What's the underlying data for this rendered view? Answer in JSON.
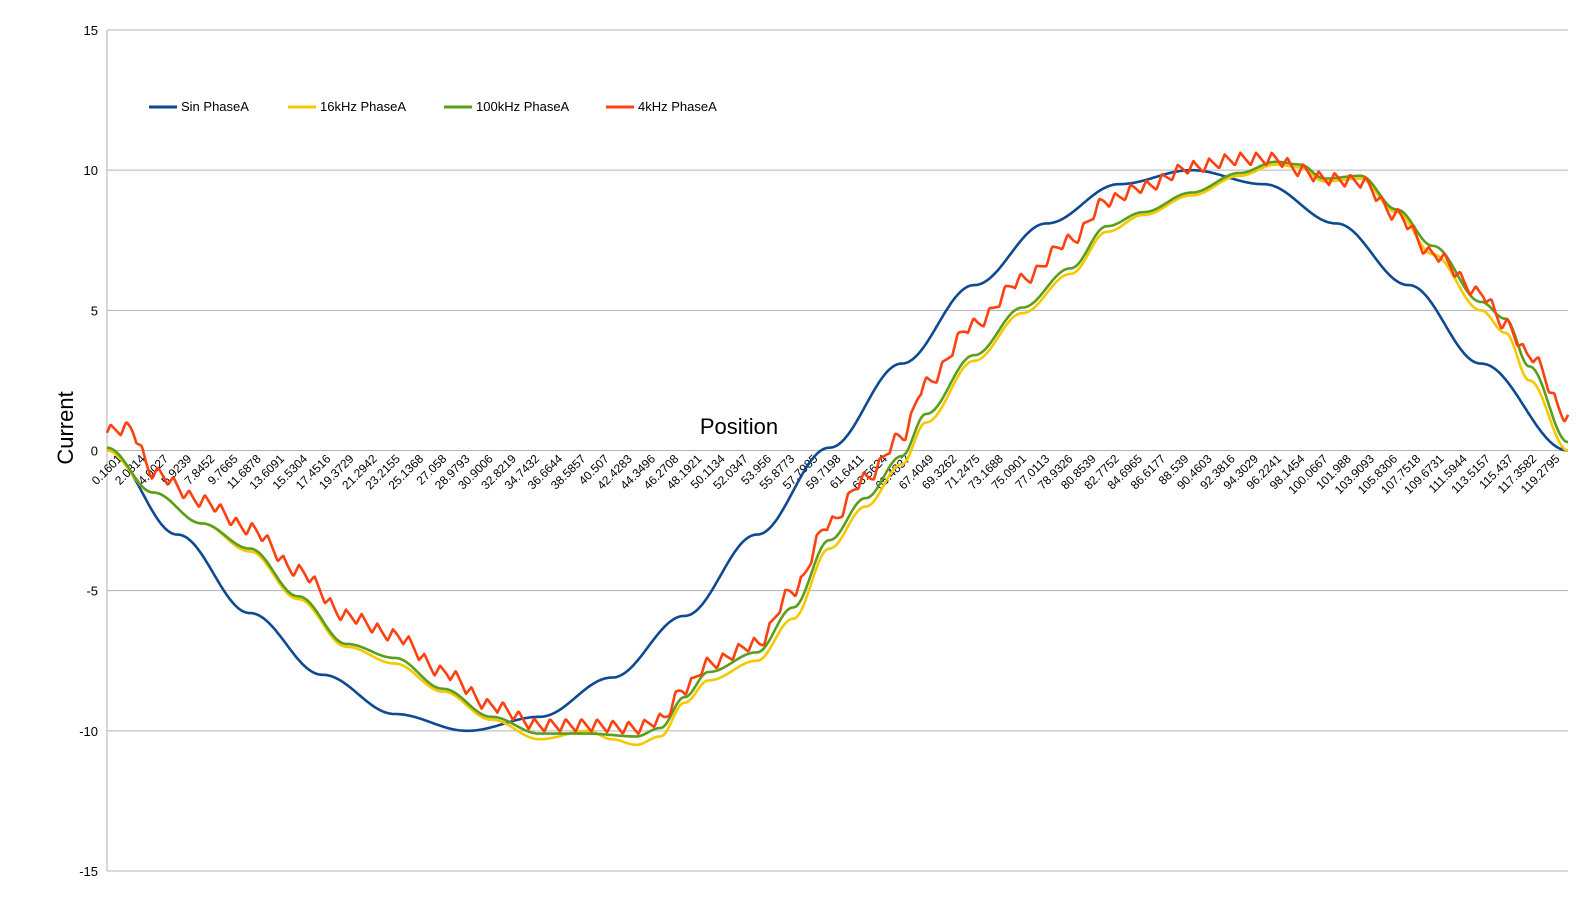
{
  "chart_data": {
    "type": "line",
    "title": "",
    "xlabel": "Position",
    "ylabel": "Current",
    "ylim": [
      -15,
      15
    ],
    "yticks": [
      "15",
      "10",
      "5",
      "0",
      "-5",
      "-10",
      "-15"
    ],
    "xticks": [
      "0.1601",
      "2.0814",
      "4.0027",
      "5.9239",
      "7.8452",
      "9.7665",
      "11.6878",
      "13.6091",
      "15.5304",
      "17.4516",
      "19.3729",
      "21.2942",
      "23.2155",
      "25.1368",
      "27.058",
      "28.9793",
      "30.9006",
      "32.8219",
      "34.7432",
      "36.6644",
      "38.5857",
      "40.507",
      "42.4283",
      "44.3496",
      "46.2708",
      "48.1921",
      "50.1134",
      "52.0347",
      "53.956",
      "55.8773",
      "57.7985",
      "59.7198",
      "61.6411",
      "63.5624",
      "65.4837",
      "67.4049",
      "69.3262",
      "71.2475",
      "73.1688",
      "75.0901",
      "77.0113",
      "78.9326",
      "80.8539",
      "82.7752",
      "84.6965",
      "86.6177",
      "88.539",
      "90.4603",
      "92.3816",
      "94.3029",
      "96.2241",
      "98.1454",
      "100.0667",
      "101.988",
      "103.9093",
      "105.8306",
      "107.7518",
      "109.6731",
      "111.5944",
      "113.5157",
      "115.437",
      "117.3582",
      "119.2795"
    ],
    "xrange": [
      0.1601,
      121.2
    ],
    "grid": true,
    "legend_position": "top-left",
    "series": [
      {
        "name": "Sin PhaseA",
        "color": "#0d4a8f",
        "points": [
          [
            0.16,
            0
          ],
          [
            6,
            -3.0
          ],
          [
            12,
            -5.8
          ],
          [
            18,
            -8.0
          ],
          [
            24,
            -9.4
          ],
          [
            30,
            -10.0
          ],
          [
            36,
            -9.5
          ],
          [
            42,
            -8.1
          ],
          [
            48,
            -5.9
          ],
          [
            54,
            -3.0
          ],
          [
            60,
            0.1
          ],
          [
            66,
            3.1
          ],
          [
            72,
            5.9
          ],
          [
            78,
            8.1
          ],
          [
            84,
            9.5
          ],
          [
            90,
            10.0
          ],
          [
            96,
            9.5
          ],
          [
            102,
            8.1
          ],
          [
            108,
            5.9
          ],
          [
            114,
            3.1
          ],
          [
            121.2,
            0
          ]
        ]
      },
      {
        "name": "16kHz PhaseA",
        "color": "#f5c800",
        "points": [
          [
            0.16,
            0
          ],
          [
            4,
            -1.5
          ],
          [
            8,
            -2.6
          ],
          [
            12,
            -3.6
          ],
          [
            16,
            -5.3
          ],
          [
            20,
            -7.0
          ],
          [
            24,
            -7.6
          ],
          [
            28,
            -8.6
          ],
          [
            32,
            -9.6
          ],
          [
            36,
            -10.3
          ],
          [
            40,
            -10.0
          ],
          [
            42,
            -10.3
          ],
          [
            44,
            -10.5
          ],
          [
            46,
            -10.2
          ],
          [
            48,
            -9.0
          ],
          [
            50,
            -8.2
          ],
          [
            54,
            -7.5
          ],
          [
            57,
            -6.0
          ],
          [
            60,
            -3.5
          ],
          [
            63,
            -2.0
          ],
          [
            66,
            -0.5
          ],
          [
            68,
            1.0
          ],
          [
            72,
            3.2
          ],
          [
            76,
            4.9
          ],
          [
            80,
            6.3
          ],
          [
            83,
            7.8
          ],
          [
            86,
            8.4
          ],
          [
            90,
            9.1
          ],
          [
            94,
            9.8
          ],
          [
            97,
            10.2
          ],
          [
            99,
            10.1
          ],
          [
            101,
            9.6
          ],
          [
            104,
            9.7
          ],
          [
            107,
            8.5
          ],
          [
            110,
            7.0
          ],
          [
            114,
            5.0
          ],
          [
            116,
            4.2
          ],
          [
            118,
            2.5
          ],
          [
            121.2,
            0
          ]
        ]
      },
      {
        "name": "100kHz PhaseA",
        "color": "#5a9e1e",
        "points": [
          [
            0.16,
            0.1
          ],
          [
            4,
            -1.5
          ],
          [
            8,
            -2.6
          ],
          [
            12,
            -3.5
          ],
          [
            16,
            -5.2
          ],
          [
            20,
            -6.9
          ],
          [
            24,
            -7.4
          ],
          [
            28,
            -8.5
          ],
          [
            32,
            -9.5
          ],
          [
            36,
            -10.1
          ],
          [
            40,
            -10.1
          ],
          [
            44,
            -10.2
          ],
          [
            46,
            -9.9
          ],
          [
            48,
            -8.8
          ],
          [
            50,
            -7.9
          ],
          [
            54,
            -7.2
          ],
          [
            57,
            -5.6
          ],
          [
            60,
            -3.2
          ],
          [
            63,
            -1.7
          ],
          [
            66,
            -0.2
          ],
          [
            68,
            1.3
          ],
          [
            72,
            3.4
          ],
          [
            76,
            5.1
          ],
          [
            80,
            6.5
          ],
          [
            83,
            8.0
          ],
          [
            86,
            8.5
          ],
          [
            90,
            9.2
          ],
          [
            94,
            9.9
          ],
          [
            97,
            10.3
          ],
          [
            99,
            10.2
          ],
          [
            101,
            9.7
          ],
          [
            104,
            9.8
          ],
          [
            107,
            8.6
          ],
          [
            110,
            7.3
          ],
          [
            114,
            5.3
          ],
          [
            116,
            4.7
          ],
          [
            118,
            3.0
          ],
          [
            121.2,
            0.3
          ]
        ]
      },
      {
        "name": "4kHz PhaseA",
        "color": "#ff4010",
        "ripple": 0.45,
        "ripple_period": 1.3,
        "points": [
          [
            0.16,
            0.7
          ],
          [
            2,
            0.8
          ],
          [
            4,
            -0.8
          ],
          [
            8,
            -1.8
          ],
          [
            12,
            -2.8
          ],
          [
            16,
            -4.3
          ],
          [
            20,
            -5.9
          ],
          [
            24,
            -6.6
          ],
          [
            28,
            -7.9
          ],
          [
            32,
            -9.1
          ],
          [
            36,
            -9.8
          ],
          [
            40,
            -9.8
          ],
          [
            44,
            -9.9
          ],
          [
            46,
            -9.6
          ],
          [
            48,
            -8.5
          ],
          [
            50,
            -7.6
          ],
          [
            54,
            -6.9
          ],
          [
            57,
            -5.0
          ],
          [
            60,
            -2.6
          ],
          [
            63,
            -1.0
          ],
          [
            66,
            0.5
          ],
          [
            68,
            2.4
          ],
          [
            72,
            4.5
          ],
          [
            76,
            6.1
          ],
          [
            80,
            7.5
          ],
          [
            83,
            8.9
          ],
          [
            86,
            9.4
          ],
          [
            90,
            10.1
          ],
          [
            94,
            10.4
          ],
          [
            97,
            10.4
          ],
          [
            99,
            10.0
          ],
          [
            101,
            9.7
          ],
          [
            104,
            9.6
          ],
          [
            107,
            8.4
          ],
          [
            110,
            7.0
          ],
          [
            114,
            5.6
          ],
          [
            116,
            4.5
          ],
          [
            118,
            3.4
          ],
          [
            121.2,
            1.2
          ]
        ]
      }
    ]
  }
}
